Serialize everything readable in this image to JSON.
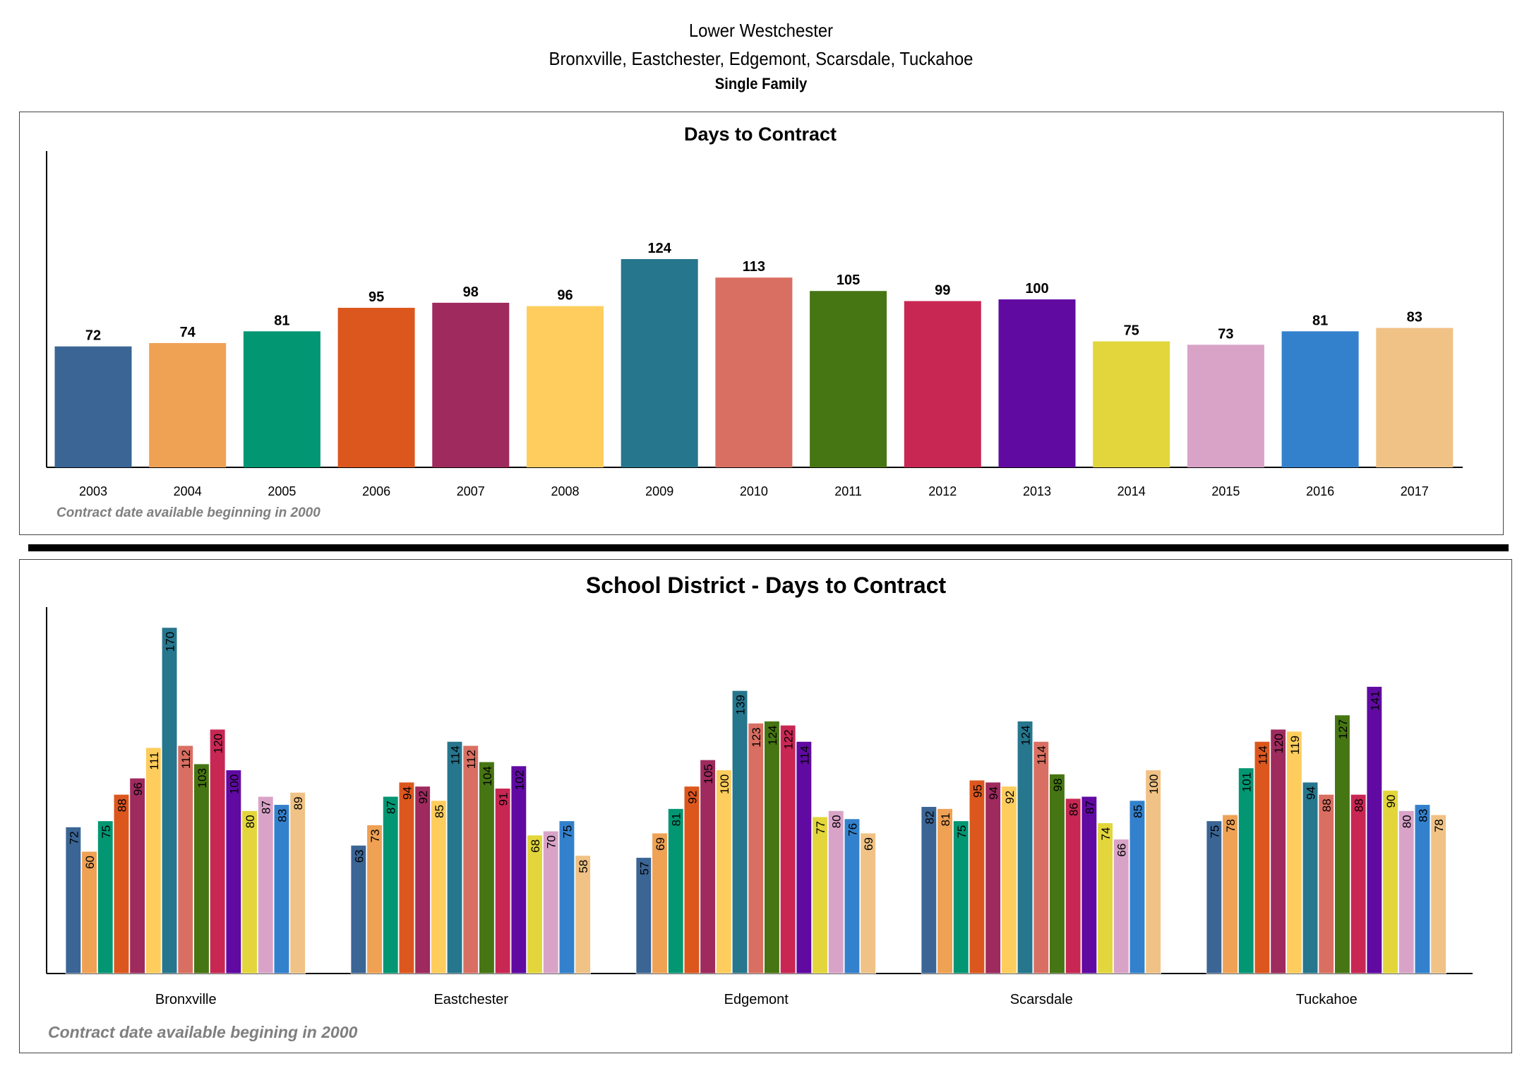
{
  "header": {
    "line1": "Lower Westchester",
    "line2": "Bronxville, Eastchester, Edgemont, Scarsdale, Tuckahoe",
    "line3": "Single Family"
  },
  "palette": [
    "#3a6595",
    "#efa154",
    "#029673",
    "#dc571e",
    "#9e2a5e",
    "#fecd5d",
    "#26768d",
    "#d96f62",
    "#467613",
    "#c82754",
    "#600aa2",
    "#e2d63c",
    "#d9a3c8",
    "#3381cc",
    "#f0c285"
  ],
  "chart_data": [
    {
      "type": "bar",
      "title": "Days to Contract",
      "categories": [
        "2003",
        "2004",
        "2005",
        "2006",
        "2007",
        "2008",
        "2009",
        "2010",
        "2011",
        "2012",
        "2013",
        "2014",
        "2015",
        "2016",
        "2017"
      ],
      "values": [
        72,
        74,
        81,
        95,
        98,
        96,
        124,
        113,
        105,
        99,
        100,
        75,
        73,
        81,
        83
      ],
      "ylim": [
        0,
        190
      ],
      "grid": false,
      "data_labels": true,
      "note": "Contract date available beginning in 2000"
    },
    {
      "type": "bar",
      "title": "School District - Days to Contract",
      "categories": [
        "Bronxville",
        "Eastchester",
        "Edgemont",
        "Scarsdale",
        "Tuckahoe"
      ],
      "series": [
        {
          "values": [
            72,
            63,
            57,
            82,
            75
          ]
        },
        {
          "values": [
            60,
            73,
            69,
            81,
            78
          ]
        },
        {
          "values": [
            75,
            87,
            81,
            75,
            101
          ]
        },
        {
          "values": [
            88,
            94,
            92,
            95,
            114
          ]
        },
        {
          "values": [
            96,
            92,
            105,
            94,
            120
          ]
        },
        {
          "values": [
            111,
            85,
            100,
            92,
            119
          ]
        },
        {
          "values": [
            170,
            114,
            139,
            124,
            94
          ]
        },
        {
          "values": [
            112,
            112,
            123,
            114,
            88
          ]
        },
        {
          "values": [
            103,
            104,
            124,
            98,
            127
          ]
        },
        {
          "values": [
            120,
            91,
            122,
            86,
            88
          ]
        },
        {
          "values": [
            100,
            102,
            114,
            87,
            141
          ]
        },
        {
          "values": [
            80,
            68,
            77,
            74,
            90
          ]
        },
        {
          "values": [
            87,
            70,
            80,
            66,
            80
          ]
        },
        {
          "values": [
            83,
            75,
            76,
            85,
            83
          ]
        },
        {
          "values": [
            89,
            58,
            69,
            100,
            78
          ]
        }
      ],
      "ylim": [
        0,
        180
      ],
      "grid": false,
      "data_labels": true,
      "note": "Contract date available begining in 2000"
    }
  ]
}
